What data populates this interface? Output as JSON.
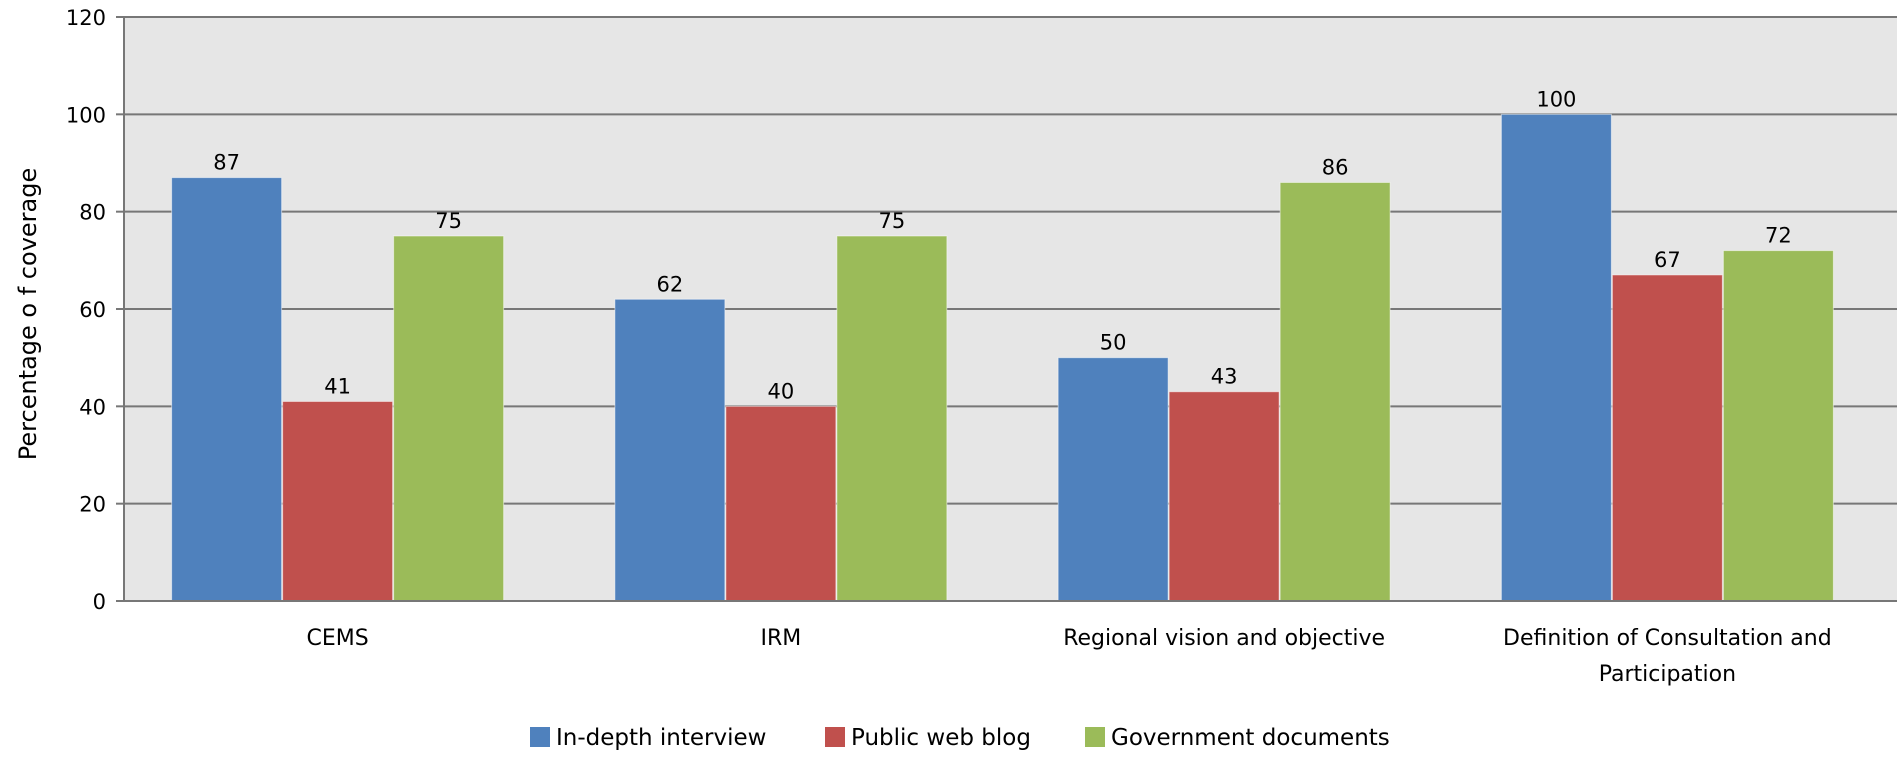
{
  "chart_data": {
    "type": "bar",
    "ylabel": "Percentage o f coverage",
    "ylim": [
      0,
      120
    ],
    "yticks": [
      0,
      20,
      40,
      60,
      80,
      100,
      120
    ],
    "grid": true,
    "legend_position": "bottom",
    "categories": [
      [
        "CEMS"
      ],
      [
        "IRM"
      ],
      [
        "Regional vision and objective"
      ],
      [
        "Definition of Consultation and",
        "Participation"
      ]
    ],
    "series": [
      {
        "name": "In-depth interview",
        "color": "#4f81bd",
        "values": [
          87,
          62,
          50,
          100
        ]
      },
      {
        "name": "Public web blog",
        "color": "#c0504d",
        "values": [
          41,
          40,
          43,
          67
        ]
      },
      {
        "name": "Government documents",
        "color": "#9bbb59",
        "values": [
          75,
          75,
          86,
          72
        ]
      }
    ]
  }
}
